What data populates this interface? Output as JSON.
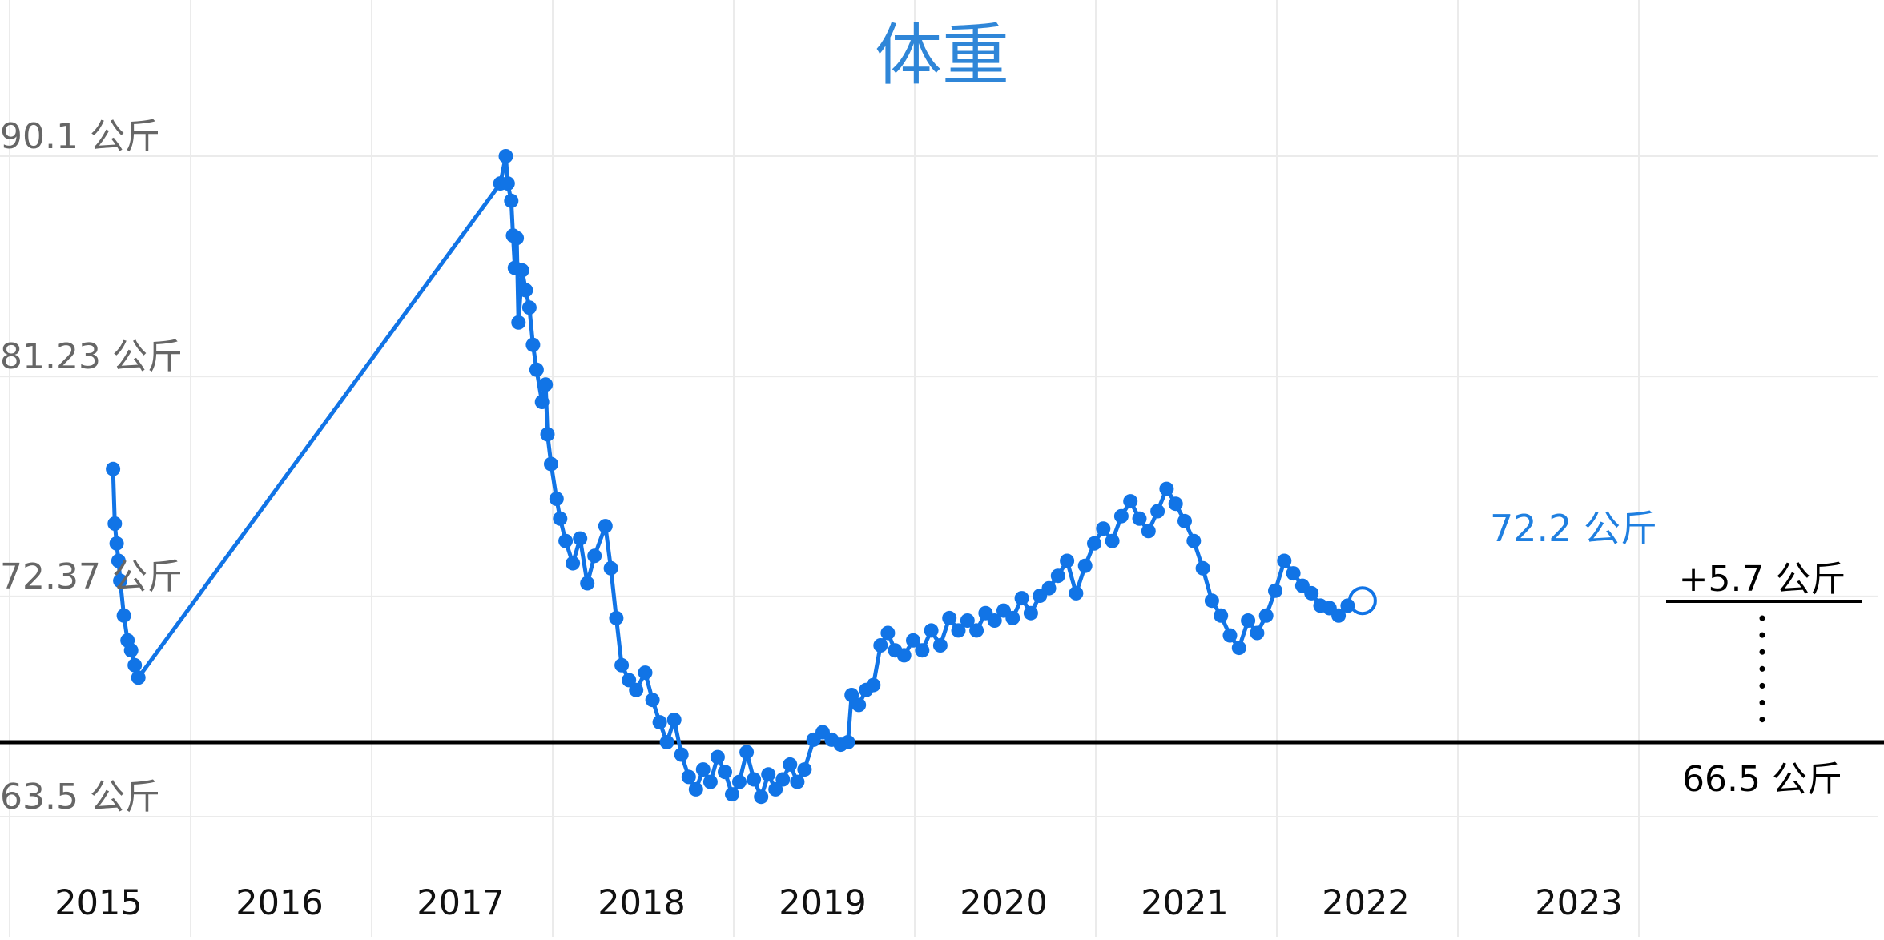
{
  "chart_data": {
    "type": "line",
    "title": "体重",
    "unit": "公斤",
    "y_ticks": [
      {
        "value": 90.1,
        "label": "90.1 公斤"
      },
      {
        "value": 81.23,
        "label": "81.23 公斤"
      },
      {
        "value": 72.37,
        "label": "72.37 公斤"
      },
      {
        "value": 63.5,
        "label": "63.5 公斤"
      }
    ],
    "x_ticks": [
      "2015",
      "2016",
      "2017",
      "2018",
      "2019",
      "2020",
      "2021",
      "2022",
      "2023"
    ],
    "xlim": [
      2015.0,
      2024.0
    ],
    "ylim": [
      63.5,
      90.1
    ],
    "goal": {
      "value": 66.5,
      "label": "66.5 公斤"
    },
    "latest": {
      "value": 72.2,
      "label": "72.2 公斤"
    },
    "delta_label": "+5.7 公斤",
    "colors": {
      "series": "#1174e6",
      "title": "#2f86d8",
      "goal": "#000000"
    },
    "grid": true,
    "series": [
      {
        "values": [
          [
            2015.08,
            77.5
          ],
          [
            2015.09,
            75.3
          ],
          [
            2015.1,
            74.5
          ],
          [
            2015.11,
            73.8
          ],
          [
            2015.12,
            73.0
          ],
          [
            2015.14,
            71.6
          ],
          [
            2015.16,
            70.6
          ],
          [
            2015.18,
            70.2
          ],
          [
            2015.2,
            69.6
          ],
          [
            2015.22,
            69.1
          ],
          [
            2017.22,
            89.0
          ],
          [
            2017.25,
            90.1
          ],
          [
            2017.26,
            89.0
          ],
          [
            2017.28,
            88.3
          ],
          [
            2017.29,
            86.9
          ],
          [
            2017.3,
            85.6
          ],
          [
            2017.31,
            86.8
          ],
          [
            2017.32,
            83.4
          ],
          [
            2017.34,
            85.5
          ],
          [
            2017.36,
            84.7
          ],
          [
            2017.38,
            84.0
          ],
          [
            2017.4,
            82.5
          ],
          [
            2017.42,
            81.5
          ],
          [
            2017.45,
            80.2
          ],
          [
            2017.47,
            80.9
          ],
          [
            2017.48,
            78.9
          ],
          [
            2017.5,
            77.7
          ],
          [
            2017.53,
            76.3
          ],
          [
            2017.55,
            75.5
          ],
          [
            2017.58,
            74.6
          ],
          [
            2017.62,
            73.7
          ],
          [
            2017.66,
            74.7
          ],
          [
            2017.7,
            72.9
          ],
          [
            2017.74,
            74.0
          ],
          [
            2017.8,
            75.2
          ],
          [
            2017.83,
            73.5
          ],
          [
            2017.86,
            71.5
          ],
          [
            2017.89,
            69.6
          ],
          [
            2017.93,
            69.0
          ],
          [
            2017.97,
            68.6
          ],
          [
            2018.02,
            69.3
          ],
          [
            2018.06,
            68.2
          ],
          [
            2018.1,
            67.3
          ],
          [
            2018.14,
            66.5
          ],
          [
            2018.18,
            67.4
          ],
          [
            2018.22,
            66.0
          ],
          [
            2018.26,
            65.1
          ],
          [
            2018.3,
            64.6
          ],
          [
            2018.34,
            65.4
          ],
          [
            2018.38,
            64.9
          ],
          [
            2018.42,
            65.9
          ],
          [
            2018.46,
            65.3
          ],
          [
            2018.5,
            64.4
          ],
          [
            2018.54,
            64.9
          ],
          [
            2018.58,
            66.1
          ],
          [
            2018.62,
            65.0
          ],
          [
            2018.66,
            64.3
          ],
          [
            2018.7,
            65.2
          ],
          [
            2018.74,
            64.6
          ],
          [
            2018.78,
            65.0
          ],
          [
            2018.82,
            65.6
          ],
          [
            2018.86,
            64.9
          ],
          [
            2018.9,
            65.4
          ],
          [
            2018.95,
            66.6
          ],
          [
            2019.0,
            66.9
          ],
          [
            2019.05,
            66.6
          ],
          [
            2019.1,
            66.4
          ],
          [
            2019.14,
            66.5
          ],
          [
            2019.16,
            68.4
          ],
          [
            2019.2,
            68.0
          ],
          [
            2019.24,
            68.6
          ],
          [
            2019.28,
            68.8
          ],
          [
            2019.32,
            70.4
          ],
          [
            2019.36,
            70.9
          ],
          [
            2019.4,
            70.2
          ],
          [
            2019.45,
            70.0
          ],
          [
            2019.5,
            70.6
          ],
          [
            2019.55,
            70.2
          ],
          [
            2019.6,
            71.0
          ],
          [
            2019.65,
            70.4
          ],
          [
            2019.7,
            71.5
          ],
          [
            2019.75,
            71.0
          ],
          [
            2019.8,
            71.4
          ],
          [
            2019.85,
            71.0
          ],
          [
            2019.9,
            71.7
          ],
          [
            2019.95,
            71.4
          ],
          [
            2020.0,
            71.8
          ],
          [
            2020.05,
            71.5
          ],
          [
            2020.1,
            72.3
          ],
          [
            2020.15,
            71.7
          ],
          [
            2020.2,
            72.4
          ],
          [
            2020.25,
            72.7
          ],
          [
            2020.3,
            73.2
          ],
          [
            2020.35,
            73.8
          ],
          [
            2020.4,
            72.5
          ],
          [
            2020.45,
            73.6
          ],
          [
            2020.5,
            74.5
          ],
          [
            2020.55,
            75.1
          ],
          [
            2020.6,
            74.6
          ],
          [
            2020.65,
            75.6
          ],
          [
            2020.7,
            76.2
          ],
          [
            2020.75,
            75.5
          ],
          [
            2020.8,
            75.0
          ],
          [
            2020.85,
            75.8
          ],
          [
            2020.9,
            76.7
          ],
          [
            2020.95,
            76.1
          ],
          [
            2021.0,
            75.4
          ],
          [
            2021.05,
            74.6
          ],
          [
            2021.1,
            73.5
          ],
          [
            2021.15,
            72.2
          ],
          [
            2021.2,
            71.6
          ],
          [
            2021.25,
            70.8
          ],
          [
            2021.3,
            70.3
          ],
          [
            2021.35,
            71.4
          ],
          [
            2021.4,
            70.9
          ],
          [
            2021.45,
            71.6
          ],
          [
            2021.5,
            72.6
          ],
          [
            2021.55,
            73.8
          ],
          [
            2021.6,
            73.3
          ],
          [
            2021.65,
            72.8
          ],
          [
            2021.7,
            72.5
          ],
          [
            2021.75,
            72.0
          ],
          [
            2021.8,
            71.9
          ],
          [
            2021.85,
            71.6
          ],
          [
            2021.9,
            72.0
          ],
          [
            2021.92,
            72.2
          ]
        ]
      }
    ]
  }
}
